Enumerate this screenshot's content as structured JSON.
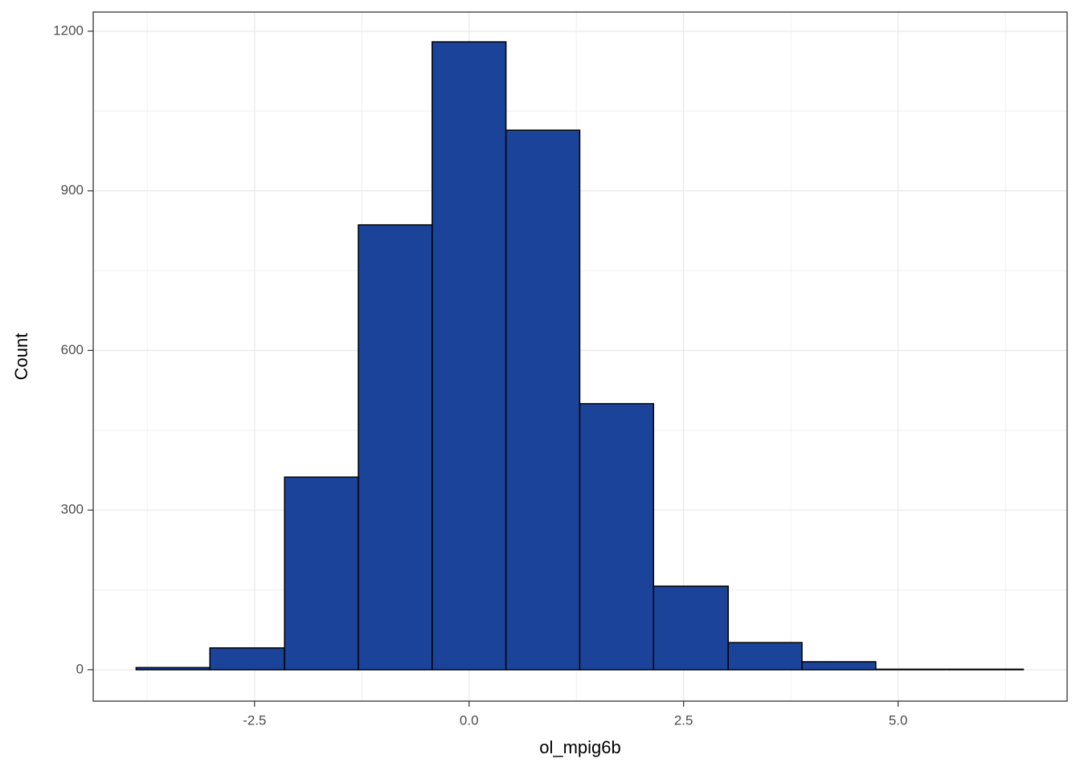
{
  "chart_data": {
    "type": "histogram",
    "x_label": "ol_mpig6b",
    "y_label": "Count",
    "bins": [
      -3.88,
      -3.02,
      -2.15,
      -1.29,
      -0.43,
      0.43,
      1.29,
      2.15,
      3.02,
      3.88,
      4.74,
      5.6,
      6.46
    ],
    "counts": [
      4,
      41,
      362,
      836,
      1180,
      1014,
      500,
      157,
      51,
      15,
      1,
      1
    ],
    "color": "#1a4399",
    "edge_color": "#000000",
    "xlim": [
      -4.38,
      6.97
    ],
    "ylim": [
      -59,
      1236
    ],
    "xticks": [
      -2.5,
      {
        "value": 0,
        "label": "0.0"
      },
      2.5,
      {
        "value": 5,
        "label": "5.0"
      }
    ],
    "yticks": [
      0,
      300,
      600,
      900,
      1200
    ],
    "grid": true
  }
}
